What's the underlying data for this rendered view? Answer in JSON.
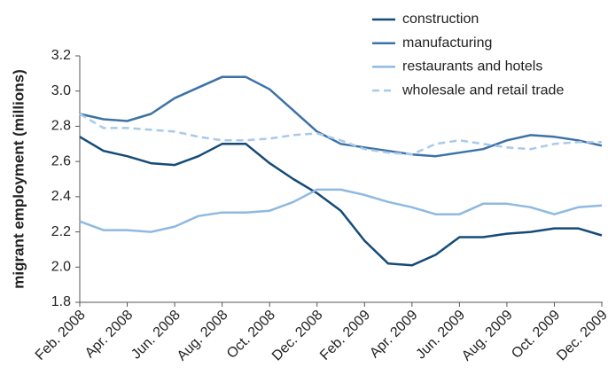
{
  "chart_data": {
    "type": "line",
    "y_label": "migrant employment (millions)",
    "categories": [
      "Feb. 2008",
      null,
      "Apr. 2008",
      null,
      "Jun. 2008",
      null,
      "Aug. 2008",
      null,
      "Oct. 2008",
      null,
      "Dec. 2008",
      null,
      "Feb. 2009",
      null,
      "Apr. 2009",
      null,
      "Jun. 2009",
      null,
      "Aug. 2009",
      null,
      "Oct. 2009",
      null,
      "Dec. 2009"
    ],
    "series": [
      {
        "name": "construction",
        "color": "#154b77",
        "dash": false,
        "values": [
          2.74,
          2.66,
          2.63,
          2.59,
          2.58,
          2.63,
          2.7,
          2.7,
          2.59,
          2.5,
          2.42,
          2.32,
          2.15,
          2.02,
          2.01,
          2.07,
          2.17,
          2.17,
          2.19,
          2.2,
          2.22,
          2.22,
          2.18
        ]
      },
      {
        "name": "manufacturing",
        "color": "#3d72a6",
        "dash": false,
        "values": [
          2.87,
          2.84,
          2.83,
          2.87,
          2.96,
          3.02,
          3.08,
          3.08,
          3.01,
          2.89,
          2.77,
          2.7,
          2.68,
          2.66,
          2.64,
          2.63,
          2.65,
          2.67,
          2.72,
          2.75,
          2.74,
          2.72,
          2.69
        ]
      },
      {
        "name": "restaurants and hotels",
        "color": "#8fb9e1",
        "dash": false,
        "values": [
          2.26,
          2.21,
          2.21,
          2.2,
          2.23,
          2.29,
          2.31,
          2.31,
          2.32,
          2.37,
          2.44,
          2.44,
          2.41,
          2.37,
          2.34,
          2.3,
          2.3,
          2.36,
          2.36,
          2.34,
          2.3,
          2.34,
          2.35
        ]
      },
      {
        "name": "wholesale and retail trade",
        "color": "#a9c9ea",
        "dash": true,
        "values": [
          2.87,
          2.79,
          2.79,
          2.78,
          2.77,
          2.74,
          2.72,
          2.72,
          2.73,
          2.75,
          2.76,
          2.72,
          2.67,
          2.65,
          2.64,
          2.7,
          2.72,
          2.7,
          2.68,
          2.67,
          2.7,
          2.71,
          2.71
        ]
      }
    ],
    "ylim": [
      1.8,
      3.2
    ],
    "yticks": [
      1.8,
      {
        "value": 2,
        "label": "2.0"
      },
      2.2,
      2.4,
      2.6,
      2.8,
      {
        "value": 3,
        "label": "3.0"
      },
      3.2
    ],
    "legend": "top-right",
    "grid": false
  }
}
